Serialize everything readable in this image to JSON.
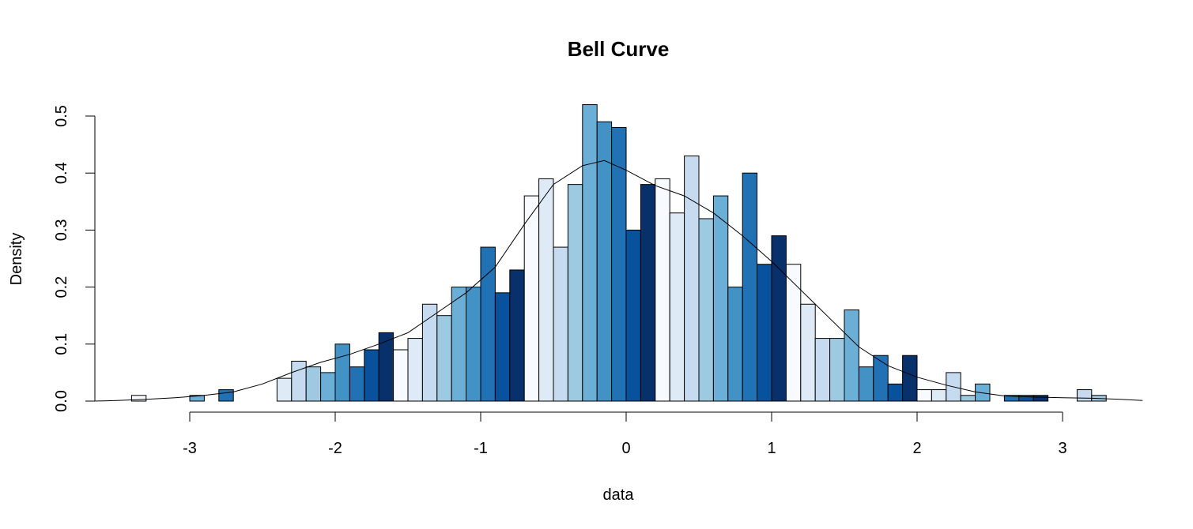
{
  "chart_data": {
    "type": "bar",
    "title": "Bell Curve",
    "xlabel": "data",
    "ylabel": "Density",
    "xlim": [
      -3.5,
      3.5
    ],
    "ylim": [
      0,
      0.5
    ],
    "x_ticks": [
      -3,
      -2,
      -1,
      0,
      1,
      2,
      3
    ],
    "x_tick_labels": [
      "-3",
      "-2",
      "-1",
      "0",
      "1",
      "2",
      "3"
    ],
    "y_ticks": [
      0.0,
      0.1,
      0.2,
      0.3,
      0.4,
      0.5
    ],
    "y_tick_labels": [
      "0.0",
      "0.1",
      "0.2",
      "0.3",
      "0.4",
      "0.5"
    ],
    "grid": false,
    "bin_width": 0.1,
    "palette": [
      "#F7FBFF",
      "#DEEBF7",
      "#C6DBEF",
      "#9ECAE1",
      "#6BAED6",
      "#4292C6",
      "#2171B5",
      "#08519C",
      "#08306B"
    ],
    "bins": [
      {
        "start": -3.4,
        "value": 0.01
      },
      {
        "start": -3.3,
        "value": 0.0
      },
      {
        "start": -3.2,
        "value": 0.0
      },
      {
        "start": -3.1,
        "value": 0.0
      },
      {
        "start": -3.0,
        "value": 0.01
      },
      {
        "start": -2.9,
        "value": 0.0
      },
      {
        "start": -2.8,
        "value": 0.02
      },
      {
        "start": -2.7,
        "value": 0.0
      },
      {
        "start": -2.6,
        "value": 0.0
      },
      {
        "start": -2.5,
        "value": 0.0
      },
      {
        "start": -2.4,
        "value": 0.04
      },
      {
        "start": -2.3,
        "value": 0.07
      },
      {
        "start": -2.2,
        "value": 0.06
      },
      {
        "start": -2.1,
        "value": 0.05
      },
      {
        "start": -2.0,
        "value": 0.1
      },
      {
        "start": -1.9,
        "value": 0.06
      },
      {
        "start": -1.8,
        "value": 0.09
      },
      {
        "start": -1.7,
        "value": 0.12
      },
      {
        "start": -1.6,
        "value": 0.09
      },
      {
        "start": -1.5,
        "value": 0.11
      },
      {
        "start": -1.4,
        "value": 0.17
      },
      {
        "start": -1.3,
        "value": 0.15
      },
      {
        "start": -1.2,
        "value": 0.2
      },
      {
        "start": -1.1,
        "value": 0.2
      },
      {
        "start": -1.0,
        "value": 0.27
      },
      {
        "start": -0.9,
        "value": 0.19
      },
      {
        "start": -0.8,
        "value": 0.23
      },
      {
        "start": -0.7,
        "value": 0.36
      },
      {
        "start": -0.6,
        "value": 0.39
      },
      {
        "start": -0.5,
        "value": 0.27
      },
      {
        "start": -0.4,
        "value": 0.38
      },
      {
        "start": -0.3,
        "value": 0.52
      },
      {
        "start": -0.2,
        "value": 0.49
      },
      {
        "start": -0.1,
        "value": 0.48
      },
      {
        "start": 0.0,
        "value": 0.3
      },
      {
        "start": 0.1,
        "value": 0.38
      },
      {
        "start": 0.2,
        "value": 0.39
      },
      {
        "start": 0.3,
        "value": 0.33
      },
      {
        "start": 0.4,
        "value": 0.43
      },
      {
        "start": 0.5,
        "value": 0.32
      },
      {
        "start": 0.6,
        "value": 0.36
      },
      {
        "start": 0.7,
        "value": 0.2
      },
      {
        "start": 0.8,
        "value": 0.4
      },
      {
        "start": 0.9,
        "value": 0.24
      },
      {
        "start": 1.0,
        "value": 0.29
      },
      {
        "start": 1.1,
        "value": 0.24
      },
      {
        "start": 1.2,
        "value": 0.17
      },
      {
        "start": 1.3,
        "value": 0.11
      },
      {
        "start": 1.4,
        "value": 0.11
      },
      {
        "start": 1.5,
        "value": 0.16
      },
      {
        "start": 1.6,
        "value": 0.06
      },
      {
        "start": 1.7,
        "value": 0.08
      },
      {
        "start": 1.8,
        "value": 0.03
      },
      {
        "start": 1.9,
        "value": 0.08
      },
      {
        "start": 2.0,
        "value": 0.02
      },
      {
        "start": 2.1,
        "value": 0.02
      },
      {
        "start": 2.2,
        "value": 0.05
      },
      {
        "start": 2.3,
        "value": 0.01
      },
      {
        "start": 2.4,
        "value": 0.03
      },
      {
        "start": 2.5,
        "value": 0.0
      },
      {
        "start": 2.6,
        "value": 0.01
      },
      {
        "start": 2.7,
        "value": 0.01
      },
      {
        "start": 2.8,
        "value": 0.01
      },
      {
        "start": 2.9,
        "value": 0.0
      },
      {
        "start": 3.0,
        "value": 0.0
      },
      {
        "start": 3.1,
        "value": 0.02
      },
      {
        "start": 3.2,
        "value": 0.01
      }
    ],
    "density_curve": {
      "x": [
        -3.65,
        -3.5,
        -3.3,
        -3.1,
        -2.9,
        -2.7,
        -2.5,
        -2.3,
        -2.1,
        -1.9,
        -1.7,
        -1.5,
        -1.3,
        -1.1,
        -0.9,
        -0.7,
        -0.5,
        -0.3,
        -0.15,
        0.0,
        0.2,
        0.4,
        0.6,
        0.8,
        1.0,
        1.2,
        1.4,
        1.6,
        1.8,
        2.0,
        2.2,
        2.4,
        2.6,
        2.8,
        3.0,
        3.2,
        3.4,
        3.55
      ],
      "y": [
        0.0,
        0.001,
        0.003,
        0.006,
        0.01,
        0.016,
        0.03,
        0.05,
        0.068,
        0.082,
        0.1,
        0.12,
        0.155,
        0.19,
        0.235,
        0.31,
        0.38,
        0.413,
        0.422,
        0.405,
        0.378,
        0.36,
        0.33,
        0.29,
        0.245,
        0.195,
        0.145,
        0.095,
        0.062,
        0.042,
        0.028,
        0.016,
        0.009,
        0.007,
        0.006,
        0.005,
        0.003,
        0.001
      ]
    }
  }
}
